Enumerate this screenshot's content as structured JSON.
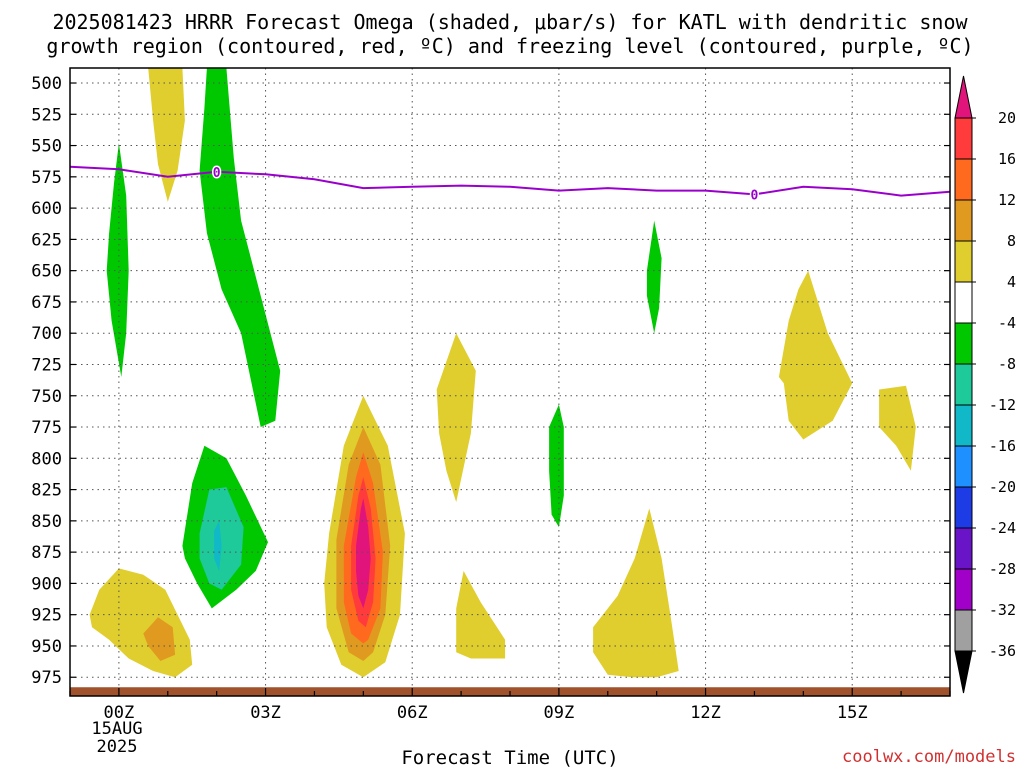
{
  "chart_data": {
    "type": "heatmap",
    "title_lines": [
      "2025081423 HRRR Forecast Omega (shaded, μbar/s) for KATL with dendritic snow",
      "growth region (contoured, red, ºC) and freezing level (contoured, purple, ºC)"
    ],
    "xlabel": "Forecast Time (UTC)",
    "x_ticks": [
      {
        "hour": 0,
        "label": "00Z"
      },
      {
        "hour": 3,
        "label": "03Z"
      },
      {
        "hour": 6,
        "label": "06Z"
      },
      {
        "hour": 9,
        "label": "09Z"
      },
      {
        "hour": 12,
        "label": "12Z"
      },
      {
        "hour": 15,
        "label": "15Z"
      }
    ],
    "x_date_label": [
      "15AUG",
      "2025"
    ],
    "xlim_hours": [
      -1,
      17
    ],
    "y_ticks": [
      500,
      525,
      550,
      575,
      600,
      625,
      650,
      675,
      700,
      725,
      750,
      775,
      800,
      825,
      850,
      875,
      900,
      925,
      950,
      975
    ],
    "ylim_hpa": [
      990,
      488
    ],
    "grid": true,
    "credit": "coolwx.com/models",
    "colorbar": {
      "labels": [
        "20",
        "16",
        "12",
        "8",
        "4",
        "-4",
        "-8",
        "-12",
        "-16",
        "-20",
        "-24",
        "-28",
        "-32",
        "-36"
      ],
      "bins": [
        {
          "range": [
            16,
            20
          ],
          "color": "#ff3b3b"
        },
        {
          "range": [
            12,
            16
          ],
          "color": "#ff6a1f"
        },
        {
          "range": [
            8,
            12
          ],
          "color": "#e09a20"
        },
        {
          "range": [
            4,
            8
          ],
          "color": "#e0ce2e"
        },
        {
          "range": [
            -4,
            4
          ],
          "color": "#ffffff"
        },
        {
          "range": [
            -8,
            -4
          ],
          "color": "#00c800"
        },
        {
          "range": [
            -12,
            -8
          ],
          "color": "#1ec99a"
        },
        {
          "range": [
            -16,
            -12
          ],
          "color": "#10b8c8"
        },
        {
          "range": [
            -20,
            -16
          ],
          "color": "#1e90ff"
        },
        {
          "range": [
            -24,
            -20
          ],
          "color": "#1e3ce6"
        },
        {
          "range": [
            -28,
            -24
          ],
          "color": "#6a14c8"
        },
        {
          "range": [
            -32,
            -28
          ],
          "color": "#a000c8"
        },
        {
          "range": [
            -36,
            -32
          ],
          "color": "#a0a0a0"
        }
      ],
      "top_arrow_color": "#e0147a",
      "bottom_arrow_color": "#000000"
    },
    "colors": {
      "green": "#00c800",
      "teal": "#1ec99a",
      "cyan": "#10b8c8",
      "yellow": "#e0ce2e",
      "gold": "#e09a20",
      "orange": "#ff6a1f",
      "red": "#ff3b3b",
      "magenta": "#e0147a",
      "freezing_level": "#9a00cc",
      "ground": "#a0522d"
    },
    "freezing_level": {
      "label": "0",
      "label_hours": [
        2,
        13
      ],
      "points": [
        [
          -1,
          567
        ],
        [
          0,
          569
        ],
        [
          1,
          575
        ],
        [
          2,
          571
        ],
        [
          3,
          573
        ],
        [
          4,
          577
        ],
        [
          5,
          584
        ],
        [
          6,
          583
        ],
        [
          7,
          582
        ],
        [
          8,
          583
        ],
        [
          9,
          586
        ],
        [
          10,
          584
        ],
        [
          11,
          586
        ],
        [
          12,
          586
        ],
        [
          13,
          589
        ],
        [
          14,
          583
        ],
        [
          15,
          585
        ],
        [
          16,
          590
        ],
        [
          17,
          587
        ]
      ]
    },
    "ground_level_hpa": 983,
    "omega_regions": [
      {
        "color": "green",
        "points": [
          [
            -0.2,
            620
          ],
          [
            -0.1,
            580
          ],
          [
            0.0,
            548
          ],
          [
            0.15,
            590
          ],
          [
            0.2,
            650
          ],
          [
            0.15,
            700
          ],
          [
            0.05,
            735
          ],
          [
            -0.15,
            690
          ],
          [
            -0.25,
            650
          ]
        ]
      },
      {
        "color": "yellow",
        "points": [
          [
            0.6,
            488
          ],
          [
            1.3,
            488
          ],
          [
            1.35,
            530
          ],
          [
            1.2,
            570
          ],
          [
            1.0,
            595
          ],
          [
            0.8,
            565
          ],
          [
            0.7,
            530
          ]
        ]
      },
      {
        "color": "green",
        "points": [
          [
            1.8,
            488
          ],
          [
            2.2,
            488
          ],
          [
            2.35,
            560
          ],
          [
            2.5,
            610
          ],
          [
            2.9,
            670
          ],
          [
            3.3,
            730
          ],
          [
            3.2,
            770
          ],
          [
            2.9,
            775
          ],
          [
            2.5,
            700
          ],
          [
            2.1,
            665
          ],
          [
            1.8,
            620
          ],
          [
            1.65,
            570
          ],
          [
            1.75,
            520
          ]
        ]
      },
      {
        "color": "green",
        "points": [
          [
            1.3,
            870
          ],
          [
            1.5,
            820
          ],
          [
            1.75,
            790
          ],
          [
            2.2,
            800
          ],
          [
            2.6,
            830
          ],
          [
            3.05,
            867
          ],
          [
            2.8,
            890
          ],
          [
            2.4,
            905
          ],
          [
            1.9,
            920
          ],
          [
            1.6,
            900
          ],
          [
            1.35,
            880
          ]
        ]
      },
      {
        "color": "teal",
        "points": [
          [
            1.65,
            860
          ],
          [
            1.85,
            825
          ],
          [
            2.2,
            823
          ],
          [
            2.55,
            855
          ],
          [
            2.5,
            885
          ],
          [
            2.1,
            905
          ],
          [
            1.85,
            900
          ],
          [
            1.65,
            880
          ]
        ]
      },
      {
        "color": "cyan",
        "points": [
          [
            1.95,
            858
          ],
          [
            2.05,
            850
          ],
          [
            2.1,
            870
          ],
          [
            2.05,
            890
          ],
          [
            1.95,
            880
          ]
        ]
      },
      {
        "color": "yellow",
        "points": [
          [
            -0.6,
            925
          ],
          [
            -0.4,
            905
          ],
          [
            0.0,
            888
          ],
          [
            0.5,
            893
          ],
          [
            0.95,
            905
          ],
          [
            1.45,
            945
          ],
          [
            1.5,
            965
          ],
          [
            1.15,
            975
          ],
          [
            0.7,
            970
          ],
          [
            0.2,
            960
          ],
          [
            -0.2,
            945
          ],
          [
            -0.55,
            935
          ]
        ]
      },
      {
        "color": "gold",
        "points": [
          [
            0.5,
            940
          ],
          [
            0.8,
            927
          ],
          [
            1.1,
            935
          ],
          [
            1.15,
            957
          ],
          [
            0.85,
            962
          ],
          [
            0.6,
            950
          ]
        ]
      },
      {
        "color": "yellow",
        "points": [
          [
            4.3,
            860
          ],
          [
            4.6,
            790
          ],
          [
            5.0,
            750
          ],
          [
            5.5,
            790
          ],
          [
            5.85,
            860
          ],
          [
            5.75,
            925
          ],
          [
            5.45,
            963
          ],
          [
            5.0,
            975
          ],
          [
            4.55,
            965
          ],
          [
            4.25,
            935
          ],
          [
            4.2,
            900
          ]
        ]
      },
      {
        "color": "gold",
        "points": [
          [
            4.45,
            865
          ],
          [
            4.7,
            805
          ],
          [
            5.0,
            775
          ],
          [
            5.35,
            805
          ],
          [
            5.55,
            870
          ],
          [
            5.45,
            925
          ],
          [
            5.2,
            955
          ],
          [
            5.0,
            962
          ],
          [
            4.7,
            955
          ],
          [
            4.45,
            920
          ]
        ]
      },
      {
        "color": "orange",
        "points": [
          [
            4.6,
            870
          ],
          [
            4.85,
            815
          ],
          [
            5.0,
            795
          ],
          [
            5.2,
            820
          ],
          [
            5.4,
            875
          ],
          [
            5.35,
            920
          ],
          [
            5.1,
            945
          ],
          [
            5.0,
            948
          ],
          [
            4.75,
            940
          ],
          [
            4.6,
            915
          ]
        ]
      },
      {
        "color": "red",
        "points": [
          [
            4.75,
            870
          ],
          [
            4.9,
            830
          ],
          [
            5.0,
            815
          ],
          [
            5.15,
            840
          ],
          [
            5.25,
            880
          ],
          [
            5.2,
            915
          ],
          [
            5.05,
            935
          ],
          [
            4.9,
            930
          ],
          [
            4.75,
            905
          ]
        ]
      },
      {
        "color": "magenta",
        "points": [
          [
            4.85,
            870
          ],
          [
            4.95,
            840
          ],
          [
            5.0,
            832
          ],
          [
            5.1,
            855
          ],
          [
            5.15,
            880
          ],
          [
            5.1,
            905
          ],
          [
            5.0,
            920
          ],
          [
            4.9,
            910
          ],
          [
            4.85,
            890
          ]
        ]
      },
      {
        "color": "yellow",
        "points": [
          [
            6.5,
            745
          ],
          [
            6.9,
            700
          ],
          [
            7.3,
            730
          ],
          [
            7.2,
            780
          ],
          [
            6.9,
            835
          ],
          [
            6.7,
            810
          ],
          [
            6.55,
            780
          ]
        ]
      },
      {
        "color": "yellow",
        "points": [
          [
            6.9,
            920
          ],
          [
            7.05,
            890
          ],
          [
            7.4,
            915
          ],
          [
            7.9,
            945
          ],
          [
            7.9,
            960
          ],
          [
            7.2,
            960
          ],
          [
            6.9,
            955
          ]
        ]
      },
      {
        "color": "green",
        "points": [
          [
            8.8,
            775
          ],
          [
            9.0,
            757
          ],
          [
            9.1,
            775
          ],
          [
            9.1,
            830
          ],
          [
            9.0,
            855
          ],
          [
            8.85,
            845
          ],
          [
            8.8,
            810
          ]
        ]
      },
      {
        "color": "yellow",
        "points": [
          [
            9.7,
            935
          ],
          [
            10.2,
            910
          ],
          [
            10.55,
            880
          ],
          [
            10.85,
            840
          ],
          [
            11.1,
            880
          ],
          [
            11.3,
            930
          ],
          [
            11.45,
            970
          ],
          [
            11.0,
            975
          ],
          [
            10.5,
            975
          ],
          [
            10.0,
            973
          ],
          [
            9.7,
            955
          ]
        ]
      },
      {
        "color": "green",
        "points": [
          [
            10.8,
            650
          ],
          [
            10.95,
            610
          ],
          [
            11.1,
            640
          ],
          [
            11.05,
            680
          ],
          [
            10.95,
            700
          ],
          [
            10.8,
            670
          ]
        ]
      },
      {
        "color": "yellow",
        "points": [
          [
            13.5,
            735
          ],
          [
            13.7,
            690
          ],
          [
            13.9,
            665
          ],
          [
            14.1,
            650
          ],
          [
            14.5,
            700
          ],
          [
            15.0,
            740
          ],
          [
            14.6,
            770
          ],
          [
            14.0,
            785
          ],
          [
            13.7,
            770
          ],
          [
            13.6,
            740
          ]
        ]
      },
      {
        "color": "yellow",
        "points": [
          [
            15.55,
            745
          ],
          [
            16.1,
            742
          ],
          [
            16.3,
            775
          ],
          [
            16.2,
            810
          ],
          [
            15.9,
            790
          ],
          [
            15.55,
            775
          ]
        ]
      }
    ]
  }
}
